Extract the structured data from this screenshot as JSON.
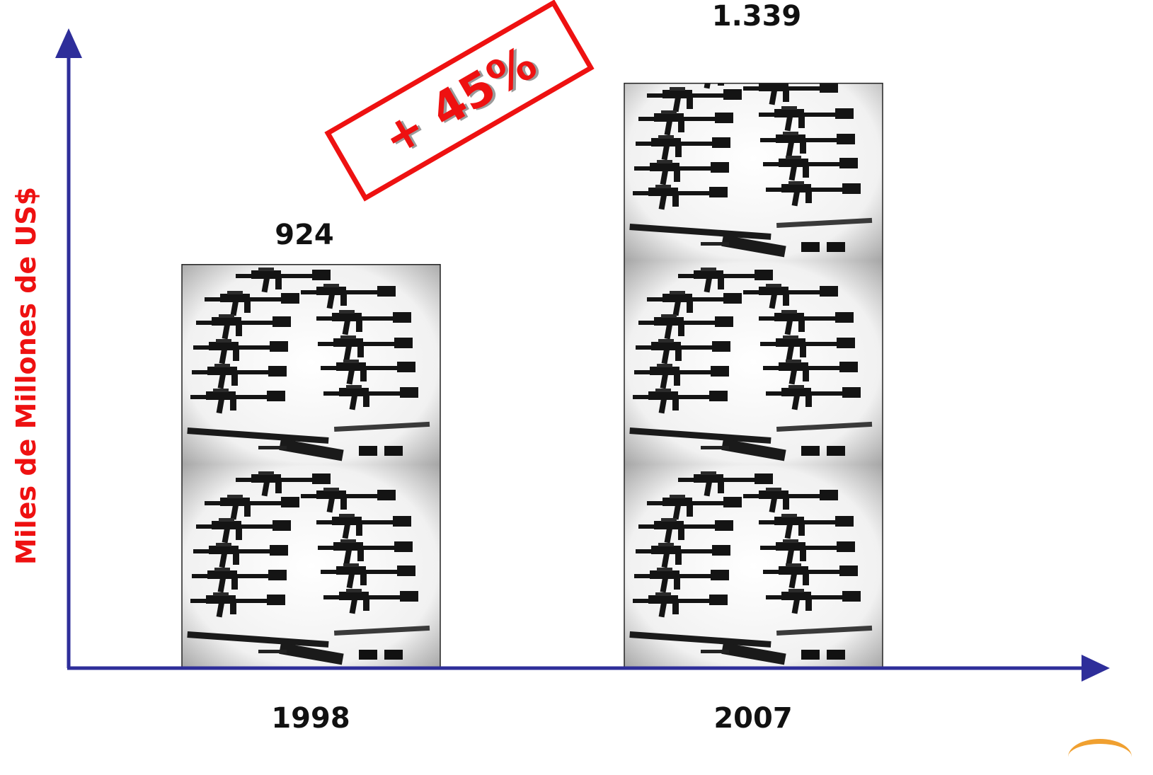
{
  "chart_data": {
    "type": "bar",
    "categories": [
      "1998",
      "2007"
    ],
    "values": [
      924,
      1339
    ],
    "value_labels": [
      "924",
      "1.339"
    ],
    "ylabel": "Miles de Millones de US$",
    "xlabel": "",
    "ylim": [
      0,
      1460
    ],
    "grid": false,
    "bar_fill": "pictogram-rifles",
    "annotation": "+ 45%",
    "colors": {
      "axis": "#2e2e9a",
      "ylabel": "#ee1111",
      "annotation": "#ee1111",
      "text": "#111111",
      "bar_background": "#f2f2f2",
      "rifle": "#141414",
      "accent": "#f0a030"
    }
  }
}
